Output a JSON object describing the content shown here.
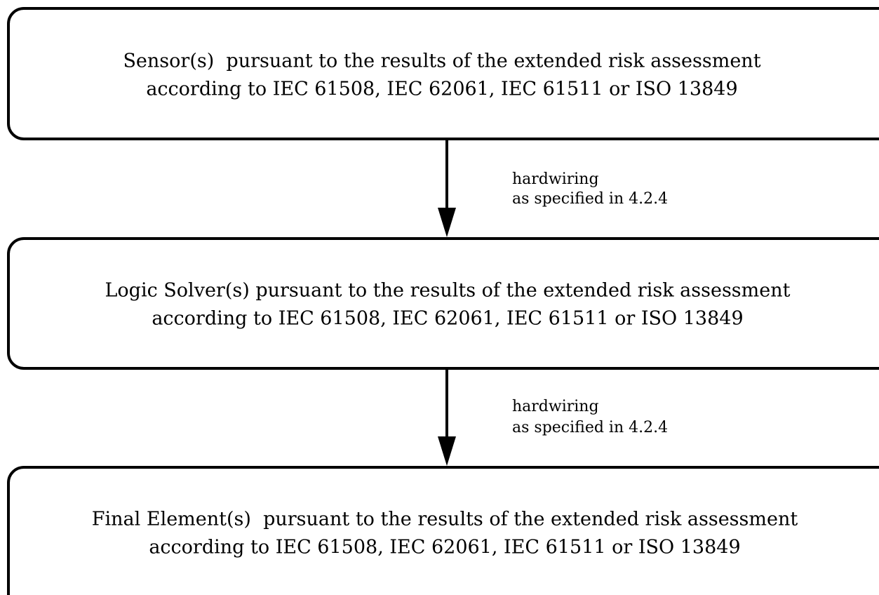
{
  "nodes": [
    {
      "lines": [
        "Sensor(s)  pursuant to the results of the extended risk assessment",
        "according to IEC 61508, IEC 62061, IEC 61511 or ISO 13849"
      ]
    },
    {
      "lines": [
        "Logic Solver(s) pursuant to the results of the extended risk assessment",
        "according to IEC 61508, IEC 62061, IEC 61511 or ISO 13849"
      ]
    },
    {
      "lines": [
        "Final Element(s)  pursuant to the results of the extended risk assessment",
        "according to IEC 61508, IEC 62061, IEC 61511 or ISO 13849"
      ]
    }
  ],
  "edges": [
    {
      "label": [
        "hardwiring",
        "as specified in 4.2.4"
      ]
    },
    {
      "label": [
        "hardwiring",
        "as specified in 4.2.4"
      ]
    }
  ]
}
